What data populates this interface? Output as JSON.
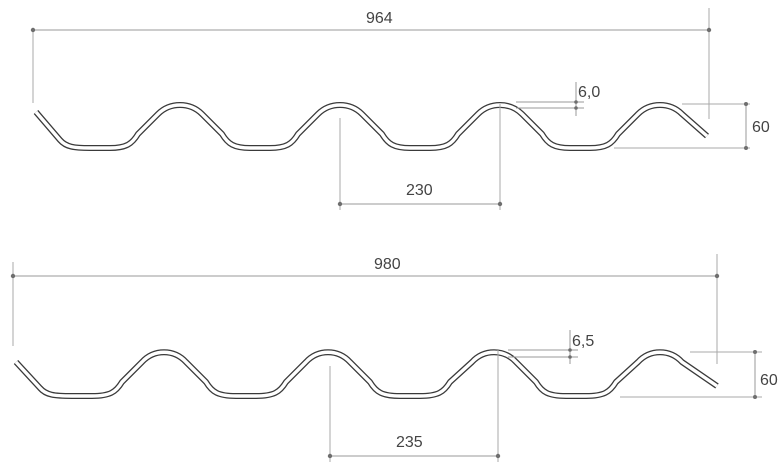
{
  "profiles": [
    {
      "overall_width_label": "964",
      "thickness_label": "6,0",
      "height_label": "60",
      "pitch_label": "230"
    },
    {
      "overall_width_label": "980",
      "thickness_label": "6,5",
      "height_label": "60",
      "pitch_label": "235"
    }
  ]
}
